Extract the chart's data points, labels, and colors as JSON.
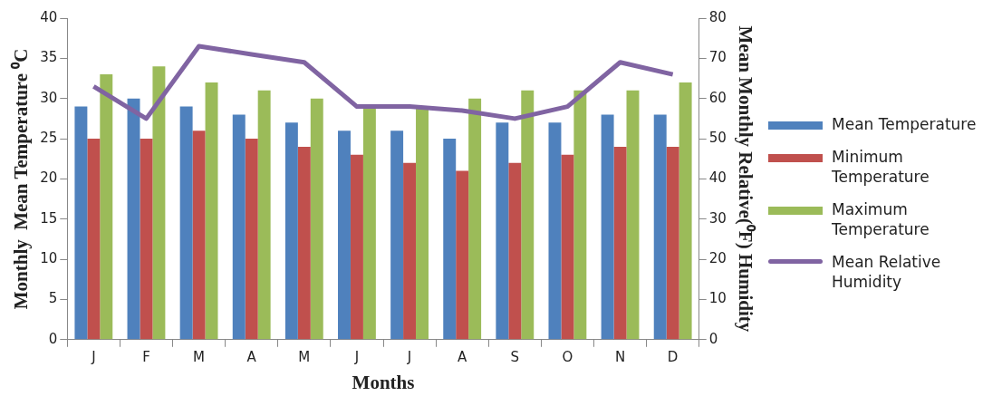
{
  "chart_data": {
    "type": "bar",
    "xlabel": "Months",
    "ylabel": "Monthly  Mean Temperature ⁰C",
    "y2label": "Mean Monthly Relative(⁰F) Humidity",
    "categories": [
      "J",
      "F",
      "M",
      "A",
      "M",
      "J",
      "J",
      "A",
      "S",
      "O",
      "N",
      "D"
    ],
    "series": [
      {
        "name": "Mean Temperature",
        "color": "#4f81bd",
        "values": [
          29,
          30,
          29,
          28,
          27,
          26,
          26,
          25,
          27,
          27,
          28,
          28
        ]
      },
      {
        "name": "Minimum Temperature",
        "color": "#c0504d",
        "values": [
          25,
          25,
          26,
          25,
          24,
          23,
          22,
          21,
          22,
          23,
          24,
          24
        ]
      },
      {
        "name": "Maximum Temperature",
        "color": "#9bbb59",
        "values": [
          33,
          34,
          32,
          31,
          30,
          29,
          29,
          30,
          31,
          31,
          31,
          32
        ]
      },
      {
        "name": "Mean Relative Humidity",
        "color": "#8064a2",
        "type": "line",
        "axis": "y2",
        "values": [
          63,
          55,
          73,
          71,
          69,
          58,
          58,
          57,
          55,
          58,
          69,
          66
        ]
      }
    ],
    "ylim": [
      0,
      40
    ],
    "yticks": [
      0,
      5,
      10,
      15,
      20,
      25,
      30,
      35,
      40
    ],
    "y2lim": [
      0,
      80
    ],
    "y2ticks": [
      0,
      10,
      20,
      30,
      40,
      50,
      60,
      70,
      80
    ],
    "grid": false,
    "legend": "right",
    "marker": "none"
  }
}
